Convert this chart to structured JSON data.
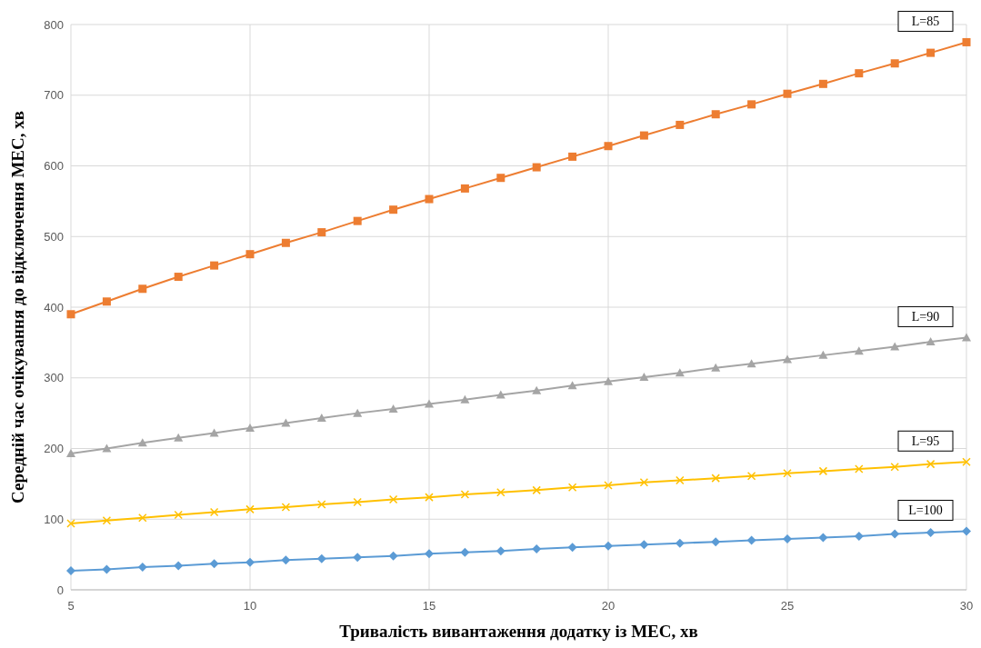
{
  "chart_data": {
    "type": "line",
    "xlabel": "Тривалість вивантаження додатку із МЕС, хв",
    "ylabel": "Середній час очікування до відключення МЕС, хв",
    "x": [
      5,
      6,
      7,
      8,
      9,
      10,
      11,
      12,
      13,
      14,
      15,
      16,
      17,
      18,
      19,
      20,
      21,
      22,
      23,
      24,
      25,
      26,
      27,
      28,
      29,
      30
    ],
    "xlim": [
      5,
      30
    ],
    "xticks": [
      5,
      10,
      15,
      20,
      25,
      30
    ],
    "ylim": [
      0,
      800
    ],
    "yticks": [
      0,
      100,
      200,
      300,
      400,
      500,
      600,
      700,
      800
    ],
    "grid": true,
    "series": [
      {
        "name": "L=85",
        "color": "#ed7d31",
        "marker": "square",
        "values": [
          390,
          408,
          426,
          443,
          459,
          475,
          491,
          506,
          522,
          538,
          553,
          568,
          583,
          598,
          613,
          628,
          643,
          658,
          673,
          687,
          702,
          716,
          731,
          745,
          760,
          775
        ]
      },
      {
        "name": "L=90",
        "color": "#a5a5a5",
        "marker": "triangle",
        "values": [
          193,
          200,
          208,
          215,
          222,
          229,
          236,
          243,
          250,
          256,
          263,
          269,
          276,
          282,
          289,
          295,
          301,
          307,
          314,
          320,
          326,
          332,
          338,
          344,
          351,
          357
        ]
      },
      {
        "name": "L=95",
        "color": "#ffc000",
        "marker": "cross",
        "values": [
          94,
          98,
          102,
          106,
          110,
          114,
          117,
          121,
          124,
          128,
          131,
          135,
          138,
          141,
          145,
          148,
          152,
          155,
          158,
          161,
          165,
          168,
          171,
          174,
          178,
          181
        ]
      },
      {
        "name": "L=100",
        "color": "#5b9bd5",
        "marker": "diamond",
        "values": [
          27,
          29,
          32,
          34,
          37,
          39,
          42,
          44,
          46,
          48,
          51,
          53,
          55,
          58,
          60,
          62,
          64,
          66,
          68,
          70,
          72,
          74,
          76,
          79,
          81,
          83
        ]
      }
    ]
  }
}
